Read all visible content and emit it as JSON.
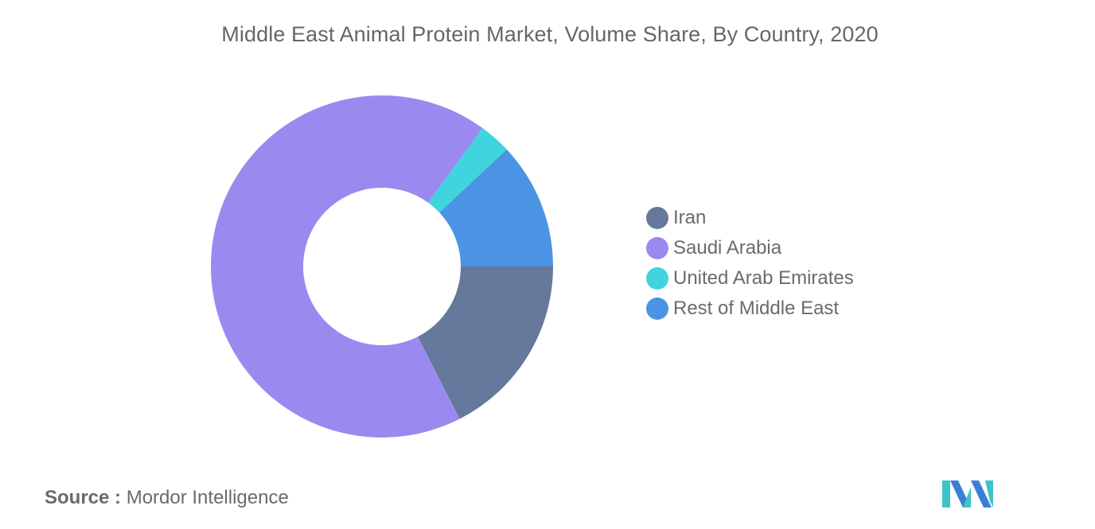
{
  "title": "Middle East Animal Protein Market, Volume Share, By Country, 2020",
  "source": {
    "label": "Source :",
    "value": "Mordor Intelligence"
  },
  "chart_data": {
    "type": "pie",
    "title": "Middle East Animal Protein Market, Volume Share, By Country, 2020",
    "donut": true,
    "legend_position": "right",
    "series": [
      {
        "name": "Iran",
        "value": 17.5,
        "color": "#66789b"
      },
      {
        "name": "Saudi Arabia",
        "value": 67.5,
        "color": "#9a8af0"
      },
      {
        "name": "United Arab Emirates",
        "value": 3.0,
        "color": "#40d4dc"
      },
      {
        "name": "Rest of Middle East",
        "value": 12.0,
        "color": "#4b93e3"
      }
    ]
  },
  "colors": {
    "logo_teal": "#3ec3c8",
    "logo_blue": "#3a7fd6"
  },
  "logo_icon": "mordor-intelligence-logo-icon"
}
